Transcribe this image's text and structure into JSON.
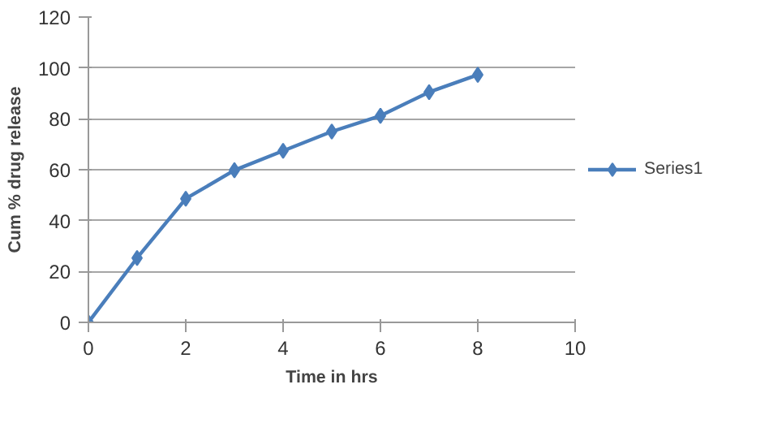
{
  "chart_data": {
    "type": "line",
    "xlabel": "Time in hrs",
    "ylabel": "Cum % drug release",
    "x": [
      0,
      1,
      2,
      3,
      4,
      5,
      6,
      7,
      8
    ],
    "series": [
      {
        "name": "Series1",
        "color": "#4a7ebb",
        "values": [
          0,
          25.3,
          48.6,
          59.8,
          67.4,
          75,
          81.2,
          90.5,
          97.3
        ]
      }
    ],
    "xlim": [
      0,
      10
    ],
    "xticks": [
      0,
      2,
      4,
      6,
      8,
      10
    ],
    "ylim": [
      0,
      120
    ],
    "yticks": [
      0,
      20,
      40,
      60,
      80,
      100,
      120
    ],
    "grid": "y",
    "legend": "right",
    "marker": "diamond",
    "line_style": "solid"
  }
}
